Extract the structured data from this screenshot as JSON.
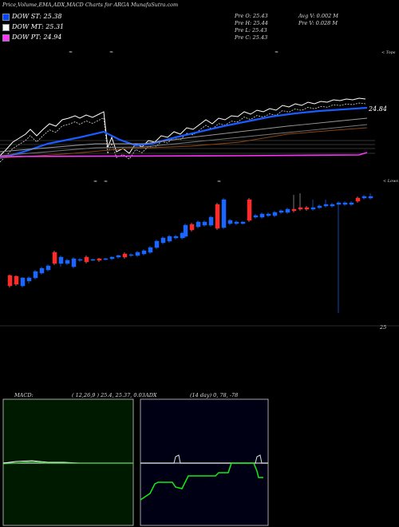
{
  "header": {
    "title": "Price,Volume,EMA,ADX,MACD Charts for ARGA MunafaSutra.com",
    "ema": [
      {
        "label": "DOW ST: 25.38",
        "color": "#0047ff"
      },
      {
        "label": "DOW MT: 25.31",
        "color": "#ffffff"
      },
      {
        "label": "DOW PT: 24.94",
        "color": "#ff33ff"
      }
    ],
    "ohlc": {
      "o": "Pre  O: 25.43",
      "h": "Pre  H: 25.44",
      "l": "Pre  L: 25.43",
      "c": "Pre  C: 25.43"
    },
    "vol": {
      "avg": "Avg V: 0.002  M",
      "pre": "Pre  V: 0.028  M"
    }
  },
  "labels": {
    "top_tag": "< Tops",
    "low_tag": "< Lows",
    "ema_price": "24.84",
    "price_tick": "25",
    "macd_title": "MACD:",
    "macd_params": "( 12,26,9 ) 25.4,  25.37,  0.03",
    "adx_title": "ADX",
    "adx_params": "(14  day) 0,  78,  -78"
  },
  "chart_data": [
    {
      "type": "candlestick",
      "last_close": 25.43,
      "ema": {
        "short": 25.38,
        "mid": 25.31,
        "long": 24.94
      },
      "up_color": "#1a66ff",
      "down_color": "#ff2a2a"
    },
    {
      "type": "line",
      "title": "MACD",
      "params": [
        12,
        26,
        9
      ],
      "values": [
        25.4,
        25.37,
        0.03
      ]
    },
    {
      "type": "line",
      "title": "ADX",
      "period": 14,
      "values": [
        0,
        78,
        -78
      ]
    }
  ]
}
